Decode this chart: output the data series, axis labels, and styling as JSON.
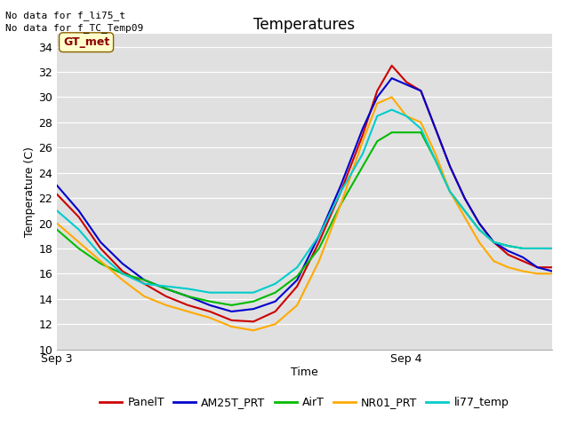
{
  "title": "Temperatures",
  "xlabel": "Time",
  "ylabel": "Temperature (C)",
  "ylim": [
    10,
    35
  ],
  "yticks": [
    10,
    12,
    14,
    16,
    18,
    20,
    22,
    24,
    26,
    28,
    30,
    32,
    34
  ],
  "xtick_labels": [
    "Sep 3",
    "Sep 4"
  ],
  "xtick_positions": [
    0,
    48
  ],
  "annotations": [
    "No data for f_li75_t",
    "No data for f_TC_Temp09"
  ],
  "legend_label": "GT_met",
  "series": {
    "PanelT": {
      "color": "#cc0000",
      "points": [
        [
          0,
          22.3
        ],
        [
          3,
          20.5
        ],
        [
          6,
          18.0
        ],
        [
          9,
          16.2
        ],
        [
          12,
          15.2
        ],
        [
          15,
          14.2
        ],
        [
          18,
          13.5
        ],
        [
          21,
          13.0
        ],
        [
          24,
          12.3
        ],
        [
          27,
          12.2
        ],
        [
          30,
          13.0
        ],
        [
          33,
          15.0
        ],
        [
          36,
          18.5
        ],
        [
          39,
          22.5
        ],
        [
          42,
          27.0
        ],
        [
          44,
          30.5
        ],
        [
          46,
          32.5
        ],
        [
          48,
          31.2
        ],
        [
          50,
          30.5
        ],
        [
          52,
          27.5
        ],
        [
          54,
          24.5
        ],
        [
          56,
          22.0
        ],
        [
          58,
          20.0
        ],
        [
          60,
          18.5
        ],
        [
          62,
          17.5
        ],
        [
          64,
          17.0
        ],
        [
          66,
          16.5
        ],
        [
          68,
          16.5
        ]
      ]
    },
    "AM25T_PRT": {
      "color": "#0000cc",
      "points": [
        [
          0,
          23.0
        ],
        [
          3,
          21.0
        ],
        [
          6,
          18.5
        ],
        [
          9,
          16.8
        ],
        [
          12,
          15.5
        ],
        [
          15,
          14.8
        ],
        [
          18,
          14.2
        ],
        [
          21,
          13.5
        ],
        [
          24,
          13.0
        ],
        [
          27,
          13.2
        ],
        [
          30,
          13.8
        ],
        [
          33,
          15.5
        ],
        [
          36,
          19.0
        ],
        [
          39,
          23.0
        ],
        [
          42,
          27.5
        ],
        [
          44,
          30.0
        ],
        [
          46,
          31.5
        ],
        [
          48,
          31.0
        ],
        [
          50,
          30.5
        ],
        [
          52,
          27.5
        ],
        [
          54,
          24.5
        ],
        [
          56,
          22.0
        ],
        [
          58,
          20.0
        ],
        [
          60,
          18.5
        ],
        [
          62,
          17.8
        ],
        [
          64,
          17.3
        ],
        [
          66,
          16.5
        ],
        [
          68,
          16.2
        ]
      ]
    },
    "AirT": {
      "color": "#00bb00",
      "points": [
        [
          0,
          19.5
        ],
        [
          3,
          18.0
        ],
        [
          6,
          16.8
        ],
        [
          9,
          16.0
        ],
        [
          12,
          15.5
        ],
        [
          15,
          14.8
        ],
        [
          18,
          14.2
        ],
        [
          21,
          13.8
        ],
        [
          24,
          13.5
        ],
        [
          27,
          13.8
        ],
        [
          30,
          14.5
        ],
        [
          33,
          15.8
        ],
        [
          36,
          18.0
        ],
        [
          39,
          21.5
        ],
        [
          42,
          24.5
        ],
        [
          44,
          26.5
        ],
        [
          46,
          27.2
        ],
        [
          48,
          27.2
        ],
        [
          50,
          27.2
        ],
        [
          52,
          25.0
        ],
        [
          54,
          22.5
        ],
        [
          56,
          21.0
        ],
        [
          58,
          19.5
        ],
        [
          60,
          18.5
        ],
        [
          62,
          18.2
        ],
        [
          64,
          18.0
        ],
        [
          66,
          18.0
        ],
        [
          68,
          18.0
        ]
      ]
    },
    "NR01_PRT": {
      "color": "#ffaa00",
      "points": [
        [
          0,
          20.0
        ],
        [
          3,
          18.5
        ],
        [
          6,
          17.0
        ],
        [
          9,
          15.5
        ],
        [
          12,
          14.2
        ],
        [
          15,
          13.5
        ],
        [
          18,
          13.0
        ],
        [
          21,
          12.5
        ],
        [
          24,
          11.8
        ],
        [
          27,
          11.5
        ],
        [
          30,
          12.0
        ],
        [
          33,
          13.5
        ],
        [
          36,
          17.0
        ],
        [
          39,
          21.5
        ],
        [
          42,
          26.5
        ],
        [
          44,
          29.5
        ],
        [
          46,
          30.0
        ],
        [
          48,
          28.5
        ],
        [
          50,
          28.0
        ],
        [
          52,
          25.5
        ],
        [
          54,
          22.5
        ],
        [
          56,
          20.5
        ],
        [
          58,
          18.5
        ],
        [
          60,
          17.0
        ],
        [
          62,
          16.5
        ],
        [
          64,
          16.2
        ],
        [
          66,
          16.0
        ],
        [
          68,
          16.0
        ]
      ]
    },
    "li77_temp": {
      "color": "#00cccc",
      "points": [
        [
          0,
          21.0
        ],
        [
          3,
          19.5
        ],
        [
          6,
          17.5
        ],
        [
          9,
          16.0
        ],
        [
          12,
          15.2
        ],
        [
          15,
          15.0
        ],
        [
          18,
          14.8
        ],
        [
          21,
          14.5
        ],
        [
          24,
          14.5
        ],
        [
          27,
          14.5
        ],
        [
          30,
          15.2
        ],
        [
          33,
          16.5
        ],
        [
          36,
          19.0
        ],
        [
          39,
          22.5
        ],
        [
          42,
          25.5
        ],
        [
          44,
          28.5
        ],
        [
          46,
          29.0
        ],
        [
          48,
          28.5
        ],
        [
          50,
          27.5
        ],
        [
          52,
          25.0
        ],
        [
          54,
          22.5
        ],
        [
          56,
          21.0
        ],
        [
          58,
          19.5
        ],
        [
          60,
          18.5
        ],
        [
          62,
          18.2
        ],
        [
          64,
          18.0
        ],
        [
          66,
          18.0
        ],
        [
          68,
          18.0
        ]
      ]
    }
  },
  "plot_bg": "#e0e0e0",
  "fig_bg": "#ffffff",
  "title_fontsize": 12,
  "axis_fontsize": 9,
  "tick_fontsize": 9,
  "legend_fontsize": 9,
  "annot_fontsize": 8
}
